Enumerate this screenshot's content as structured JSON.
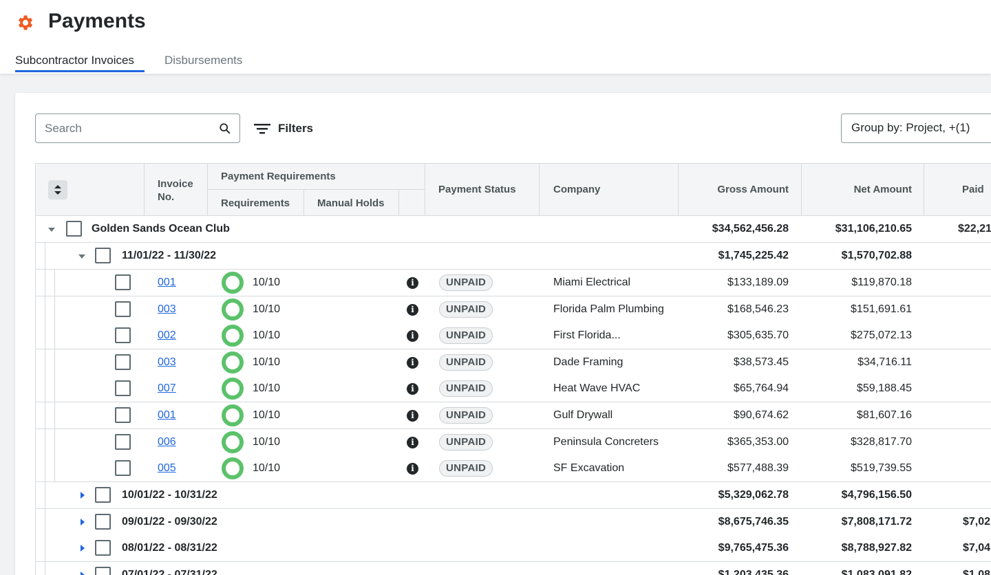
{
  "header": {
    "title": "Payments",
    "tabs": [
      {
        "label": "Subcontractor Invoices",
        "active": true
      },
      {
        "label": "Disbursements",
        "active": false
      }
    ]
  },
  "toolbar": {
    "search_placeholder": "Search",
    "filters_label": "Filters",
    "groupby_label": "Group by: Project, +(1)"
  },
  "columns": {
    "invoice_no": "Invoice No.",
    "payment_requirements": "Payment Requirements",
    "requirements": "Requirements",
    "manual_holds": "Manual Holds",
    "payment_status": "Payment Status",
    "company": "Company",
    "gross_amount": "Gross Amount",
    "net_amount": "Net Amount",
    "paid": "Paid"
  },
  "project": {
    "name": "Golden Sands Ocean Club",
    "gross": "$34,562,456.28",
    "net": "$31,106,210.65",
    "paid": "$22,21"
  },
  "open_period": {
    "label": "11/01/22 - 11/30/22",
    "gross": "$1,745,225.42",
    "net": "$1,570,702.88",
    "paid": ""
  },
  "invoices": [
    {
      "no": "001",
      "req": "10/10",
      "status": "UNPAID",
      "company": "Miami Electrical",
      "gross": "$133,189.09",
      "net": "$119,870.18"
    },
    {
      "no": "003",
      "req": "10/10",
      "status": "UNPAID",
      "company": "Florida Palm Plumbing",
      "gross": "$168,546.23",
      "net": "$151,691.61"
    },
    {
      "no": "002",
      "req": "10/10",
      "status": "UNPAID",
      "company": "First Florida...",
      "gross": "$305,635.70",
      "net": "$275,072.13"
    },
    {
      "no": "003",
      "req": "10/10",
      "status": "UNPAID",
      "company": "Dade Framing",
      "gross": "$38,573.45",
      "net": "$34,716.11"
    },
    {
      "no": "007",
      "req": "10/10",
      "status": "UNPAID",
      "company": "Heat Wave HVAC",
      "gross": "$65,764.94",
      "net": "$59,188.45"
    },
    {
      "no": "001",
      "req": "10/10",
      "status": "UNPAID",
      "company": "Gulf Drywall",
      "gross": "$90,674.62",
      "net": "$81,607.16"
    },
    {
      "no": "006",
      "req": "10/10",
      "status": "UNPAID",
      "company": "Peninsula Concreters",
      "gross": "$365,353.00",
      "net": "$328,817.70"
    },
    {
      "no": "005",
      "req": "10/10",
      "status": "UNPAID",
      "company": "SF Excavation",
      "gross": "$577,488.39",
      "net": "$519,739.55"
    }
  ],
  "collapsed_periods": [
    {
      "label": "10/01/22 - 10/31/22",
      "gross": "$5,329,062.78",
      "net": "$4,796,156.50",
      "paid": ""
    },
    {
      "label": "09/01/22 - 09/30/22",
      "gross": "$8,675,746.35",
      "net": "$7,808,171.72",
      "paid": "$7,02"
    },
    {
      "label": "08/01/22 - 08/31/22",
      "gross": "$9,765,475.36",
      "net": "$8,788,927.82",
      "paid": "$7,04"
    },
    {
      "label": "07/01/22 - 07/31/22",
      "gross": "$1,203,435.36",
      "net": "$1,083,091.82",
      "paid": "$1,08"
    }
  ],
  "colors": {
    "accent": "#2066df",
    "brand_icon": "#f05a23",
    "ring_green": "#5bc26a",
    "caret_blue": "#2066df"
  }
}
